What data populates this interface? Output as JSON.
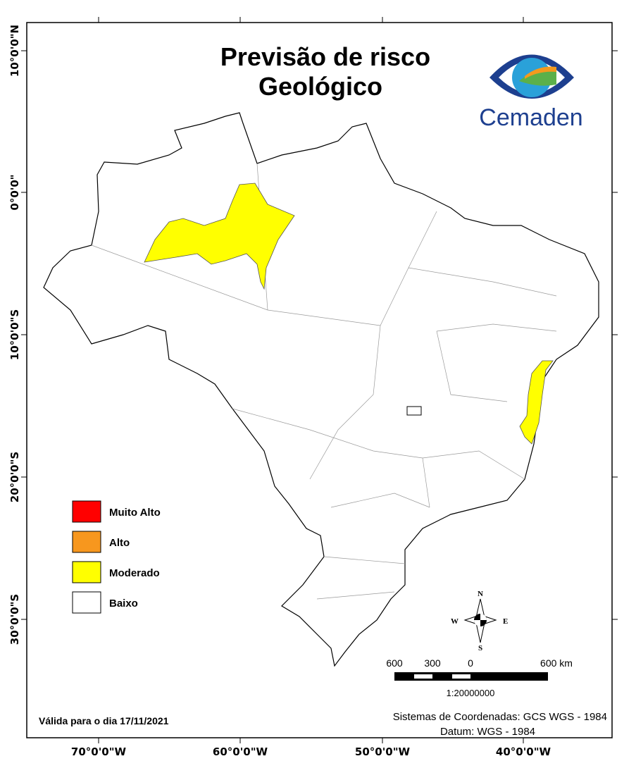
{
  "header": {
    "title_line1": "Previsão de risco",
    "title_line2": "Geológico",
    "logo_text": "Cemaden"
  },
  "axes": {
    "longitude_labels": [
      "70°0'0\"W",
      "60°0'0\"W",
      "50°0'0\"W",
      "40°0'0\"W"
    ],
    "latitude_labels": [
      "10°0'0\"N",
      "0°0'0\"",
      "10°0'0\"S",
      "20°0'0\"S",
      "30°0'0\"S"
    ]
  },
  "legend": {
    "items": [
      {
        "label": "Muito Alto",
        "color": "#ff0000"
      },
      {
        "label": "Alto",
        "color": "#f7971e"
      },
      {
        "label": "Moderado",
        "color": "#ffff00"
      },
      {
        "label": "Baixo",
        "color": "#ffffff"
      }
    ]
  },
  "compass": {
    "north": "N",
    "south": "S",
    "east": "E",
    "west": "W"
  },
  "scale_bar": {
    "labels": [
      "600",
      "300",
      "0",
      "600 km"
    ],
    "ratio": "1:20000000"
  },
  "footer": {
    "validity": "Válida para o dia 17/11/2021",
    "coordinate_system": "Sistemas de Coordenadas: GCS WGS - 1984",
    "datum": "Datum: WGS - 1984"
  }
}
